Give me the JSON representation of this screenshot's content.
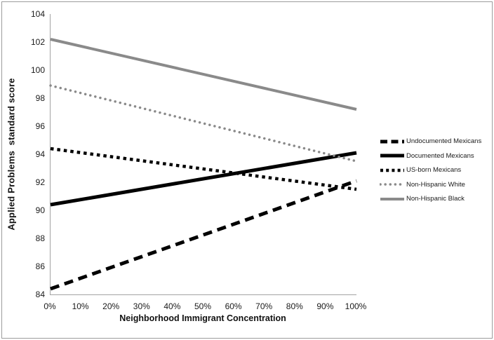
{
  "chart_data": {
    "type": "line",
    "title": "",
    "xlabel": "Neighborhood Immigrant Concentration",
    "ylabel": "Applied Problems  standard score",
    "x_tick_labels": [
      "0%",
      "10%",
      "20%",
      "30%",
      "40%",
      "50%",
      "60%",
      "70%",
      "80%",
      "90%",
      "100%"
    ],
    "y_tick_values": [
      104,
      102,
      100,
      98,
      96,
      94,
      92,
      90,
      88,
      86,
      84
    ],
    "xlim": [
      0,
      100
    ],
    "ylim": [
      84,
      104
    ],
    "grid": false,
    "legend_position": "right",
    "x": [
      0,
      100
    ],
    "series": [
      {
        "name": "Undocumented Mexicans",
        "values": [
          84.4,
          92.1
        ],
        "color": "#000000",
        "style": "long-dash",
        "width": 5
      },
      {
        "name": "Documented Mexicans",
        "values": [
          90.4,
          94.1
        ],
        "color": "#000000",
        "style": "solid",
        "width": 5
      },
      {
        "name": "US-born Mexicans",
        "values": [
          94.4,
          91.5
        ],
        "color": "#000000",
        "style": "square-dot",
        "width": 4.5
      },
      {
        "name": "Non-Hispanic White",
        "values": [
          98.9,
          93.5
        ],
        "color": "#8a8a8a",
        "style": "round-dot",
        "width": 3.5
      },
      {
        "name": "Non-Hispanic Black",
        "values": [
          102.2,
          97.2
        ],
        "color": "#8a8a8a",
        "style": "solid",
        "width": 4
      }
    ],
    "axis_color": "#a3a3a3"
  }
}
